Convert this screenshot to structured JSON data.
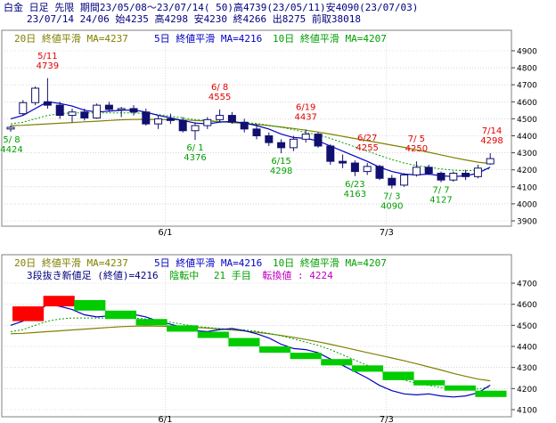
{
  "header": {
    "line1": "白金 日足 先限 期間23/05/08～23/07/14( 50)高4739(23/05/11)安4090(23/07/03)",
    "line2": "23/07/14 24/06 始4235 高4298 安4230 終4266 出8275 前取38018"
  },
  "colors": {
    "ma20": "#808000",
    "ma5": "#0000c0",
    "ma10": "#00a000",
    "up_candle": "#ffffff",
    "down_candle": "#101070",
    "rise_brick": "#ff0000",
    "fall_brick": "#00cc00",
    "label_high": "#e00000",
    "label_low": "#00a000",
    "header_text": "#000080",
    "grid": "#c0c0c0"
  },
  "top_legend": {
    "ma20": "20日 終値平滑 MA=4237",
    "ma5": "5日 終値平滑 MA=4216",
    "ma10": "10日 終値平滑 MA=4207"
  },
  "bottom_legend": {
    "ma20": "20日 終値平滑 MA=4237",
    "ma5": "5日 終値平滑 MA=4216",
    "ma10": "10日 終値平滑 MA=4207",
    "sanbon_a": "3段抜き新値足 (終値)=4216",
    "sanbon_b": "陰転中",
    "sanbon_c": "21 手目",
    "sanbon_d": "転換値 : 4224"
  },
  "chart_data": [
    {
      "type": "candlestick",
      "ylim": [
        3900,
        4900
      ],
      "y_ticks": [
        "4900",
        "4800",
        "4700",
        "4600",
        "4500",
        "4400",
        "4300",
        "4200",
        "4100",
        "4000",
        "3900"
      ],
      "x_ticks": [
        "6/1",
        "7/3"
      ],
      "candles": [
        [
          4440,
          4460,
          4424,
          4450
        ],
        [
          4530,
          4610,
          4520,
          4595
        ],
        [
          4595,
          4690,
          4580,
          4680
        ],
        [
          4600,
          4739,
          4560,
          4580
        ],
        [
          4580,
          4600,
          4500,
          4520
        ],
        [
          4520,
          4560,
          4480,
          4540
        ],
        [
          4540,
          4560,
          4490,
          4505
        ],
        [
          4505,
          4590,
          4500,
          4580
        ],
        [
          4580,
          4600,
          4540,
          4555
        ],
        [
          4555,
          4570,
          4510,
          4560
        ],
        [
          4560,
          4580,
          4520,
          4540
        ],
        [
          4540,
          4560,
          4460,
          4470
        ],
        [
          4470,
          4520,
          4440,
          4500
        ],
        [
          4500,
          4530,
          4470,
          4490
        ],
        [
          4490,
          4510,
          4420,
          4430
        ],
        [
          4430,
          4480,
          4376,
          4460
        ],
        [
          4460,
          4510,
          4440,
          4495
        ],
        [
          4495,
          4555,
          4480,
          4520
        ],
        [
          4520,
          4540,
          4470,
          4480
        ],
        [
          4480,
          4500,
          4420,
          4440
        ],
        [
          4440,
          4470,
          4380,
          4400
        ],
        [
          4400,
          4420,
          4340,
          4360
        ],
        [
          4360,
          4380,
          4298,
          4330
        ],
        [
          4330,
          4400,
          4310,
          4380
        ],
        [
          4380,
          4437,
          4360,
          4410
        ],
        [
          4410,
          4420,
          4330,
          4340
        ],
        [
          4340,
          4350,
          4230,
          4250
        ],
        [
          4250,
          4290,
          4210,
          4240
        ],
        [
          4240,
          4255,
          4163,
          4190
        ],
        [
          4190,
          4240,
          4170,
          4220
        ],
        [
          4220,
          4230,
          4140,
          4150
        ],
        [
          4150,
          4170,
          4090,
          4110
        ],
        [
          4110,
          4180,
          4100,
          4170
        ],
        [
          4170,
          4250,
          4160,
          4215
        ],
        [
          4215,
          4230,
          4170,
          4180
        ],
        [
          4180,
          4190,
          4127,
          4140
        ],
        [
          4140,
          4190,
          4130,
          4180
        ],
        [
          4180,
          4200,
          4140,
          4160
        ],
        [
          4160,
          4230,
          4150,
          4210
        ],
        [
          4235,
          4298,
          4230,
          4266
        ]
      ],
      "ma5": [
        4500,
        4520,
        4560,
        4600,
        4590,
        4575,
        4550,
        4540,
        4545,
        4550,
        4552,
        4540,
        4520,
        4505,
        4490,
        4475,
        4470,
        4480,
        4485,
        4475,
        4460,
        4440,
        4410,
        4390,
        4385,
        4370,
        4340,
        4310,
        4280,
        4250,
        4215,
        4190,
        4175,
        4170,
        4175,
        4165,
        4160,
        4165,
        4180,
        4216
      ],
      "ma10": [
        4470,
        4480,
        4500,
        4520,
        4530,
        4535,
        4535,
        4535,
        4535,
        4535,
        4535,
        4530,
        4525,
        4515,
        4505,
        4495,
        4490,
        4485,
        4480,
        4478,
        4472,
        4462,
        4450,
        4436,
        4420,
        4405,
        4385,
        4360,
        4335,
        4310,
        4285,
        4260,
        4240,
        4225,
        4215,
        4205,
        4198,
        4195,
        4198,
        4207
      ],
      "ma20": [
        4460,
        4462,
        4466,
        4470,
        4474,
        4478,
        4482,
        4486,
        4490,
        4494,
        4496,
        4497,
        4496,
        4495,
        4493,
        4490,
        4487,
        4483,
        4478,
        4473,
        4467,
        4460,
        4452,
        4443,
        4433,
        4422,
        4410,
        4397,
        4384,
        4371,
        4358,
        4345,
        4332,
        4318,
        4303,
        4288,
        4272,
        4258,
        4245,
        4237
      ],
      "annotations": [
        {
          "date": "5/11",
          "value": "4739",
          "kind": "high"
        },
        {
          "date": "5/ 8",
          "value": "4424",
          "kind": "low"
        },
        {
          "date": "6/ 8",
          "value": "4555",
          "kind": "high"
        },
        {
          "date": "6/ 1",
          "value": "4376",
          "kind": "low"
        },
        {
          "date": "6/19",
          "value": "4437",
          "kind": "high"
        },
        {
          "date": "6/15",
          "value": "4298",
          "kind": "low"
        },
        {
          "date": "6/27",
          "value": "4255",
          "kind": "high"
        },
        {
          "date": "6/23",
          "value": "4163",
          "kind": "low"
        },
        {
          "date": "7/ 5",
          "value": "4250",
          "kind": "high"
        },
        {
          "date": "7/ 3",
          "value": "4090",
          "kind": "low"
        },
        {
          "date": "7/14",
          "value": "4298",
          "kind": "high"
        },
        {
          "date": "7/ 7",
          "value": "4127",
          "kind": "low"
        }
      ]
    },
    {
      "type": "line",
      "ylim": [
        4100,
        4700
      ],
      "y_ticks": [
        "4700",
        "4600",
        "4500",
        "4400",
        "4300",
        "4200",
        "4100"
      ],
      "x_ticks": [
        "6/1",
        "7/3"
      ],
      "bricks": [
        {
          "from": 4520,
          "to": 4590,
          "dir": "up"
        },
        {
          "from": 4590,
          "to": 4640,
          "dir": "up"
        },
        {
          "from": 4620,
          "to": 4570,
          "dir": "down"
        },
        {
          "from": 4570,
          "to": 4530,
          "dir": "down"
        },
        {
          "from": 4530,
          "to": 4500,
          "dir": "down"
        },
        {
          "from": 4500,
          "to": 4470,
          "dir": "down"
        },
        {
          "from": 4470,
          "to": 4440,
          "dir": "down"
        },
        {
          "from": 4440,
          "to": 4400,
          "dir": "down"
        },
        {
          "from": 4400,
          "to": 4370,
          "dir": "down"
        },
        {
          "from": 4370,
          "to": 4340,
          "dir": "down"
        },
        {
          "from": 4340,
          "to": 4310,
          "dir": "down"
        },
        {
          "from": 4310,
          "to": 4280,
          "dir": "down"
        },
        {
          "from": 4280,
          "to": 4240,
          "dir": "down"
        },
        {
          "from": 4240,
          "to": 4215,
          "dir": "down"
        },
        {
          "from": 4215,
          "to": 4190,
          "dir": "down"
        },
        {
          "from": 4190,
          "to": 4160,
          "dir": "down"
        }
      ]
    }
  ]
}
